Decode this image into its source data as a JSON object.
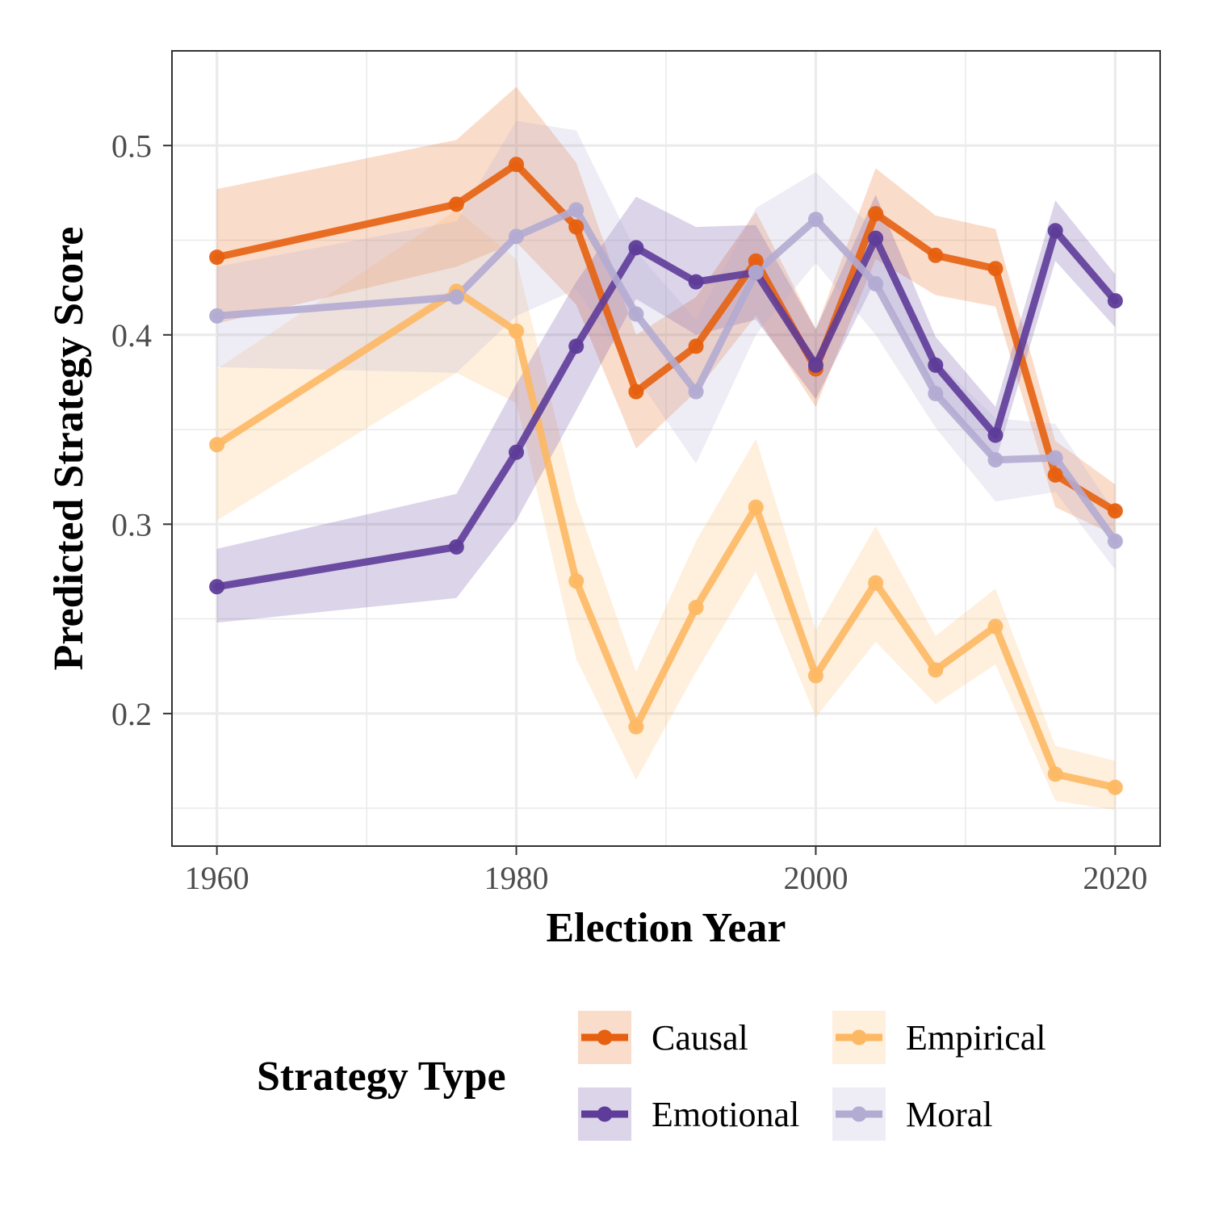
{
  "chart_data": {
    "type": "line",
    "xlabel": "Election Year",
    "ylabel": "Predicted Strategy Score",
    "xlim": [
      1957,
      2023
    ],
    "ylim": [
      0.13,
      0.55
    ],
    "xticks": [
      1960,
      1980,
      2000,
      2020
    ],
    "xtick_labels": [
      "1960",
      "1980",
      "2000",
      "2020"
    ],
    "yticks": [
      0.2,
      0.3,
      0.4,
      0.5
    ],
    "ytick_labels": [
      "0.2",
      "0.3",
      "0.4",
      "0.5"
    ],
    "grid": true,
    "legend": {
      "title": "Strategy Type",
      "position": "bottom"
    },
    "x": [
      1960,
      1976,
      1980,
      1984,
      1988,
      1992,
      1996,
      2000,
      2004,
      2008,
      2012,
      2016,
      2020
    ],
    "series": [
      {
        "name": "Causal",
        "color": "#e6600f",
        "values": [
          0.441,
          0.469,
          0.49,
          0.457,
          0.37,
          0.394,
          0.439,
          0.382,
          0.464,
          0.442,
          0.435,
          0.326,
          0.307
        ],
        "lower": [
          0.406,
          0.436,
          0.449,
          0.416,
          0.34,
          0.37,
          0.41,
          0.362,
          0.44,
          0.421,
          0.415,
          0.309,
          0.294
        ],
        "upper": [
          0.477,
          0.503,
          0.531,
          0.491,
          0.4,
          0.42,
          0.465,
          0.403,
          0.488,
          0.463,
          0.456,
          0.344,
          0.321
        ]
      },
      {
        "name": "Empirical",
        "color": "#fdb863",
        "values": [
          0.342,
          0.423,
          0.402,
          0.27,
          0.193,
          0.256,
          0.309,
          0.22,
          0.269,
          0.223,
          0.246,
          0.168,
          0.161
        ],
        "lower": [
          0.302,
          0.38,
          0.364,
          0.229,
          0.165,
          0.222,
          0.275,
          0.198,
          0.238,
          0.205,
          0.226,
          0.154,
          0.149
        ],
        "upper": [
          0.382,
          0.466,
          0.44,
          0.312,
          0.222,
          0.291,
          0.345,
          0.244,
          0.299,
          0.241,
          0.266,
          0.183,
          0.175
        ]
      },
      {
        "name": "Emotional",
        "color": "#5e3c99",
        "values": [
          0.267,
          0.288,
          0.338,
          0.394,
          0.446,
          0.428,
          0.433,
          0.384,
          0.451,
          0.384,
          0.347,
          0.455,
          0.418
        ],
        "lower": [
          0.248,
          0.261,
          0.302,
          0.36,
          0.419,
          0.4,
          0.408,
          0.366,
          0.429,
          0.369,
          0.333,
          0.439,
          0.404
        ],
        "upper": [
          0.287,
          0.316,
          0.374,
          0.428,
          0.473,
          0.457,
          0.458,
          0.403,
          0.474,
          0.399,
          0.362,
          0.471,
          0.432
        ]
      },
      {
        "name": "Moral",
        "color": "#b2abd2",
        "values": [
          0.41,
          0.42,
          0.452,
          0.466,
          0.411,
          0.37,
          0.433,
          0.461,
          0.427,
          0.369,
          0.334,
          0.335,
          0.291
        ],
        "lower": [
          0.383,
          0.38,
          0.41,
          0.424,
          0.378,
          0.332,
          0.4,
          0.438,
          0.4,
          0.351,
          0.312,
          0.317,
          0.276
        ],
        "upper": [
          0.436,
          0.46,
          0.513,
          0.508,
          0.444,
          0.408,
          0.467,
          0.486,
          0.455,
          0.387,
          0.356,
          0.353,
          0.306
        ]
      }
    ]
  }
}
